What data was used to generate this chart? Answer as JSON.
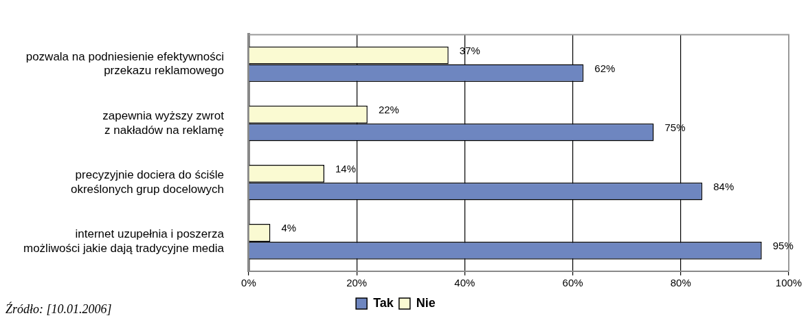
{
  "chart_data": {
    "type": "bar",
    "orientation": "horizontal",
    "categories": [
      "pozwala na podniesienie efektywności\nprzekazu reklamowego",
      "zapewnia wyższy zwrot\nz nakładów na reklamę",
      "precyzyjnie dociera do ściśle\nokreślonych grup docelowych",
      "internet uzupełnia i poszerza\nmożliwości jakie dają tradycyjne media"
    ],
    "series": [
      {
        "name": "Nie",
        "color": "#fafad2",
        "values": [
          37,
          22,
          14,
          4
        ],
        "value_labels": [
          "37%",
          "22%",
          "14%",
          "4%"
        ]
      },
      {
        "name": "Tak",
        "color": "#6e86c0",
        "values": [
          62,
          75,
          84,
          95
        ],
        "value_labels": [
          "62%",
          "75%",
          "84%",
          "95%"
        ]
      }
    ],
    "xlim": [
      0,
      100
    ],
    "xticks": [
      {
        "value": 0,
        "label": "0%"
      },
      {
        "value": 20,
        "label": "20%"
      },
      {
        "value": 40,
        "label": "40%"
      },
      {
        "value": 60,
        "label": "60%"
      },
      {
        "value": 80,
        "label": "80%"
      },
      {
        "value": 100,
        "label": "100%"
      }
    ],
    "grid": "x",
    "legend": "bottom",
    "annotations": [
      "Źródło: [10.01.2006]"
    ]
  }
}
